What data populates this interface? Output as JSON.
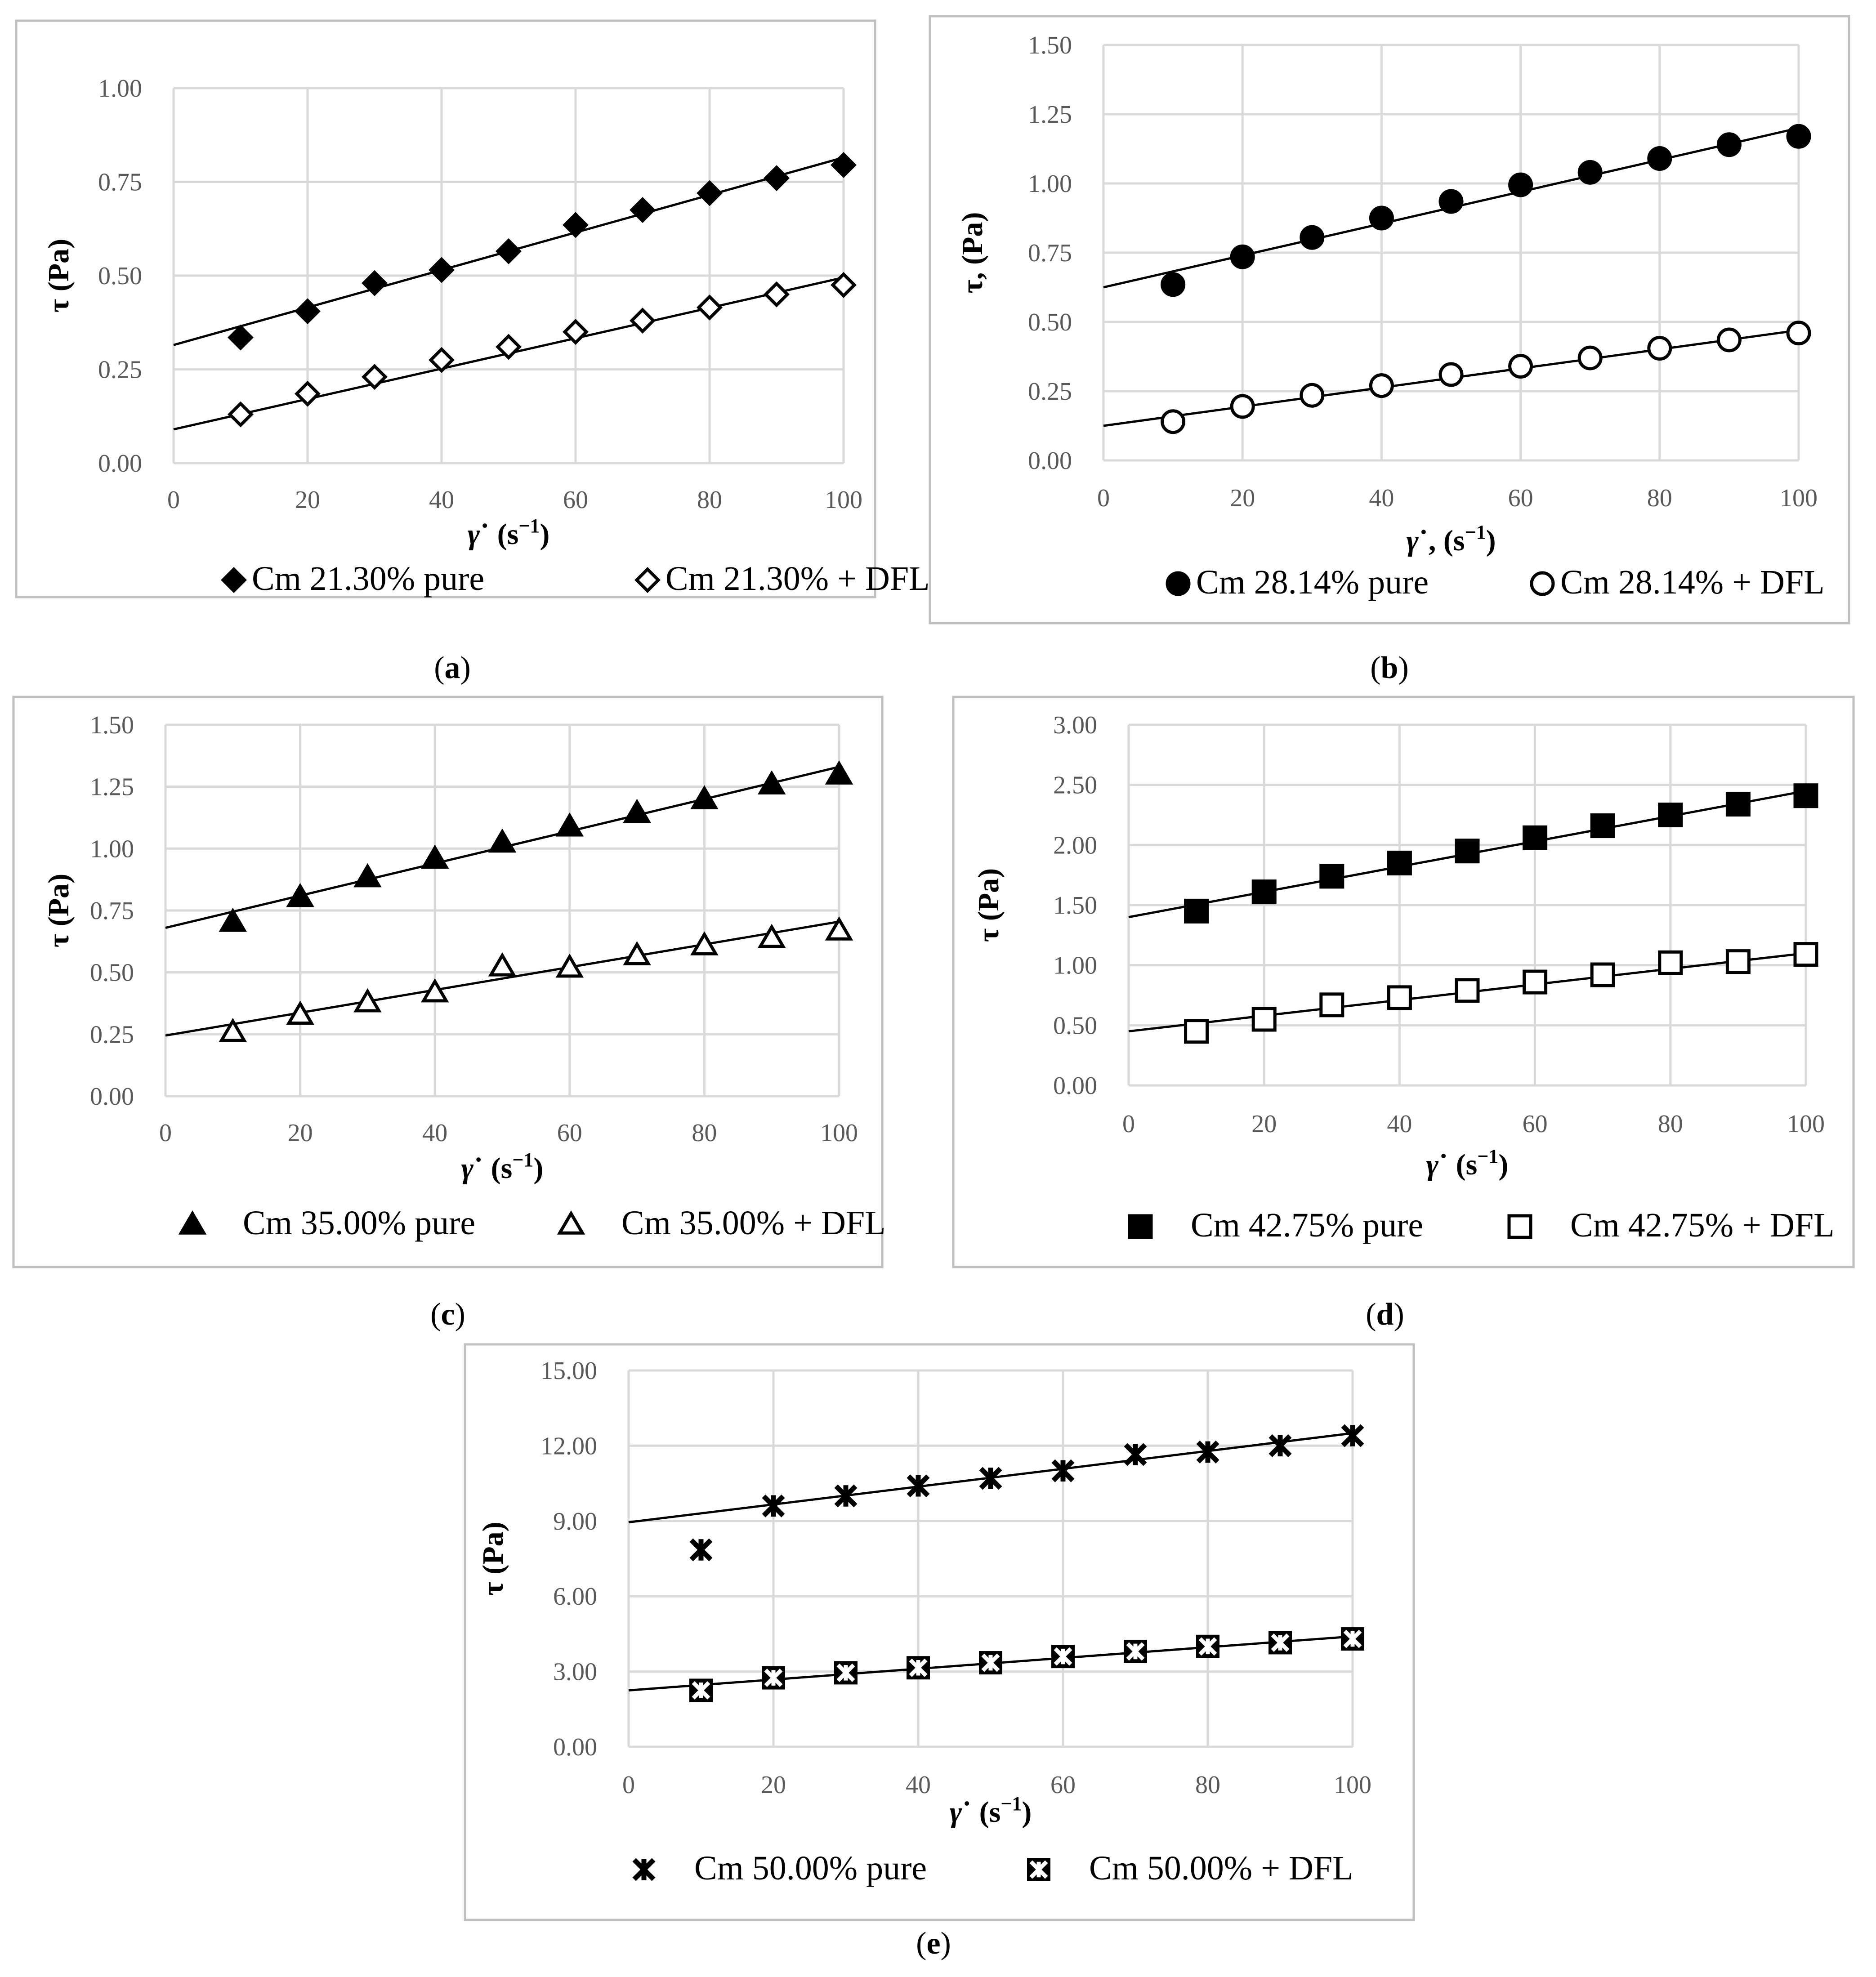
{
  "chart_data": [
    {
      "type": "scatter",
      "panel_label": "(a)",
      "panel_letter": "a",
      "ylabel": "τ (Pa)",
      "xlabel": "γ˙ (s−1)",
      "xlim": [
        0,
        100
      ],
      "ylim": [
        0,
        1.0
      ],
      "xticks": [
        "0",
        "20",
        "40",
        "60",
        "80",
        "100"
      ],
      "yticks": [
        "0.00",
        "0.25",
        "0.50",
        "0.75",
        "1.00"
      ],
      "grid": true,
      "legend_position": "bottom",
      "series": [
        {
          "name": "Cm 21.30% pure",
          "marker": "diamond-filled",
          "x": [
            10,
            20,
            30,
            40,
            50,
            60,
            70,
            80,
            90,
            100
          ],
          "y": [
            0.335,
            0.405,
            0.48,
            0.515,
            0.565,
            0.635,
            0.675,
            0.72,
            0.76,
            0.795
          ],
          "trendline": [
            0.315,
            0.815
          ]
        },
        {
          "name": "Cm 21.30% + DFL",
          "marker": "diamond-open",
          "x": [
            10,
            20,
            30,
            40,
            50,
            60,
            70,
            80,
            90,
            100
          ],
          "y": [
            0.13,
            0.185,
            0.23,
            0.275,
            0.31,
            0.35,
            0.38,
            0.415,
            0.45,
            0.475
          ],
          "trendline": [
            0.09,
            0.495
          ]
        }
      ]
    },
    {
      "type": "scatter",
      "panel_label": "(b)",
      "panel_letter": "b",
      "ylabel": "τ, (Pa)",
      "xlabel": "γ˙, (s−1)",
      "xlim": [
        0,
        100
      ],
      "ylim": [
        0,
        1.5
      ],
      "xticks": [
        "0",
        "20",
        "40",
        "60",
        "80",
        "100"
      ],
      "yticks": [
        "0.00",
        "0.25",
        "0.50",
        "0.75",
        "1.00",
        "1.25",
        "1.50"
      ],
      "grid": true,
      "legend_position": "bottom",
      "series": [
        {
          "name": "Cm 28.14% pure",
          "marker": "circle-filled",
          "x": [
            10,
            20,
            30,
            40,
            50,
            60,
            70,
            80,
            90,
            100
          ],
          "y": [
            0.635,
            0.735,
            0.805,
            0.875,
            0.935,
            0.995,
            1.04,
            1.09,
            1.14,
            1.17
          ],
          "trendline": [
            0.625,
            1.2
          ]
        },
        {
          "name": "Cm 28.14% + DFL",
          "marker": "circle-open",
          "x": [
            10,
            20,
            30,
            40,
            50,
            60,
            70,
            80,
            90,
            100
          ],
          "y": [
            0.14,
            0.195,
            0.235,
            0.27,
            0.31,
            0.34,
            0.37,
            0.405,
            0.435,
            0.46
          ],
          "trendline": [
            0.125,
            0.47
          ]
        }
      ]
    },
    {
      "type": "scatter",
      "panel_label": "(c)",
      "panel_letter": "c",
      "ylabel": "τ (Pa)",
      "xlabel": "γ˙ (s−1)",
      "xlim": [
        0,
        100
      ],
      "ylim": [
        0,
        1.5
      ],
      "xticks": [
        "0",
        "20",
        "40",
        "60",
        "80",
        "100"
      ],
      "yticks": [
        "0.00",
        "0.25",
        "0.50",
        "0.75",
        "1.00",
        "1.25",
        "1.50"
      ],
      "grid": true,
      "legend_position": "bottom",
      "series": [
        {
          "name": "Cm 35.00% pure",
          "marker": "triangle-filled",
          "x": [
            10,
            20,
            30,
            40,
            50,
            60,
            70,
            80,
            90,
            100
          ],
          "y": [
            0.705,
            0.805,
            0.885,
            0.96,
            1.025,
            1.09,
            1.145,
            1.2,
            1.26,
            1.3
          ],
          "trendline": [
            0.68,
            1.33
          ]
        },
        {
          "name": "Cm 35.00% + DFL",
          "marker": "triangle-open",
          "x": [
            10,
            20,
            30,
            40,
            50,
            60,
            70,
            80,
            90,
            100
          ],
          "y": [
            0.26,
            0.33,
            0.38,
            0.42,
            0.525,
            0.52,
            0.57,
            0.61,
            0.64,
            0.67
          ],
          "trendline": [
            0.245,
            0.705
          ]
        }
      ]
    },
    {
      "type": "scatter",
      "panel_label": "(d)",
      "panel_letter": "d",
      "ylabel": "τ (Pa)",
      "xlabel": "γ˙ (s−1)",
      "xlim": [
        0,
        100
      ],
      "ylim": [
        0,
        3.0
      ],
      "xticks": [
        "0",
        "20",
        "40",
        "60",
        "80",
        "100"
      ],
      "yticks": [
        "0.00",
        "0.50",
        "1.00",
        "1.50",
        "2.00",
        "2.50",
        "3.00"
      ],
      "grid": true,
      "legend_position": "bottom",
      "series": [
        {
          "name": "Cm 42.75% pure",
          "marker": "square-filled",
          "x": [
            10,
            20,
            30,
            40,
            50,
            60,
            70,
            80,
            90,
            100
          ],
          "y": [
            1.45,
            1.61,
            1.74,
            1.85,
            1.95,
            2.06,
            2.16,
            2.25,
            2.34,
            2.41
          ],
          "trendline": [
            1.4,
            2.45
          ]
        },
        {
          "name": "Cm 42.75% + DFL",
          "marker": "square-open",
          "x": [
            10,
            20,
            30,
            40,
            50,
            60,
            70,
            80,
            90,
            100
          ],
          "y": [
            0.45,
            0.55,
            0.67,
            0.73,
            0.79,
            0.86,
            0.92,
            1.02,
            1.03,
            1.09
          ],
          "trendline": [
            0.45,
            1.1
          ]
        }
      ]
    },
    {
      "type": "scatter",
      "panel_label": "(e)",
      "panel_letter": "e",
      "ylabel": "τ (Pa)",
      "xlabel": "γ˙ (s−1)",
      "xlim": [
        0,
        100
      ],
      "ylim": [
        0,
        15.0
      ],
      "xticks": [
        "0",
        "20",
        "40",
        "60",
        "80",
        "100"
      ],
      "yticks": [
        "0.00",
        "3.00",
        "6.00",
        "9.00",
        "12.00",
        "15.00"
      ],
      "grid": true,
      "legend_position": "bottom",
      "series": [
        {
          "name": "Cm 50.00% pure",
          "marker": "star-cross",
          "x": [
            10,
            20,
            30,
            40,
            50,
            60,
            70,
            80,
            90,
            100
          ],
          "y": [
            7.85,
            9.6,
            10.0,
            10.4,
            10.7,
            11.0,
            11.65,
            11.75,
            12.0,
            12.4
          ],
          "trendline": [
            8.95,
            12.5
          ]
        },
        {
          "name": "Cm 50.00% + DFL",
          "marker": "boxed-star",
          "x": [
            10,
            20,
            30,
            40,
            50,
            60,
            70,
            80,
            90,
            100
          ],
          "y": [
            2.25,
            2.75,
            2.95,
            3.15,
            3.35,
            3.6,
            3.8,
            4.0,
            4.15,
            4.3
          ],
          "trendline": [
            2.25,
            4.4
          ]
        }
      ]
    }
  ]
}
